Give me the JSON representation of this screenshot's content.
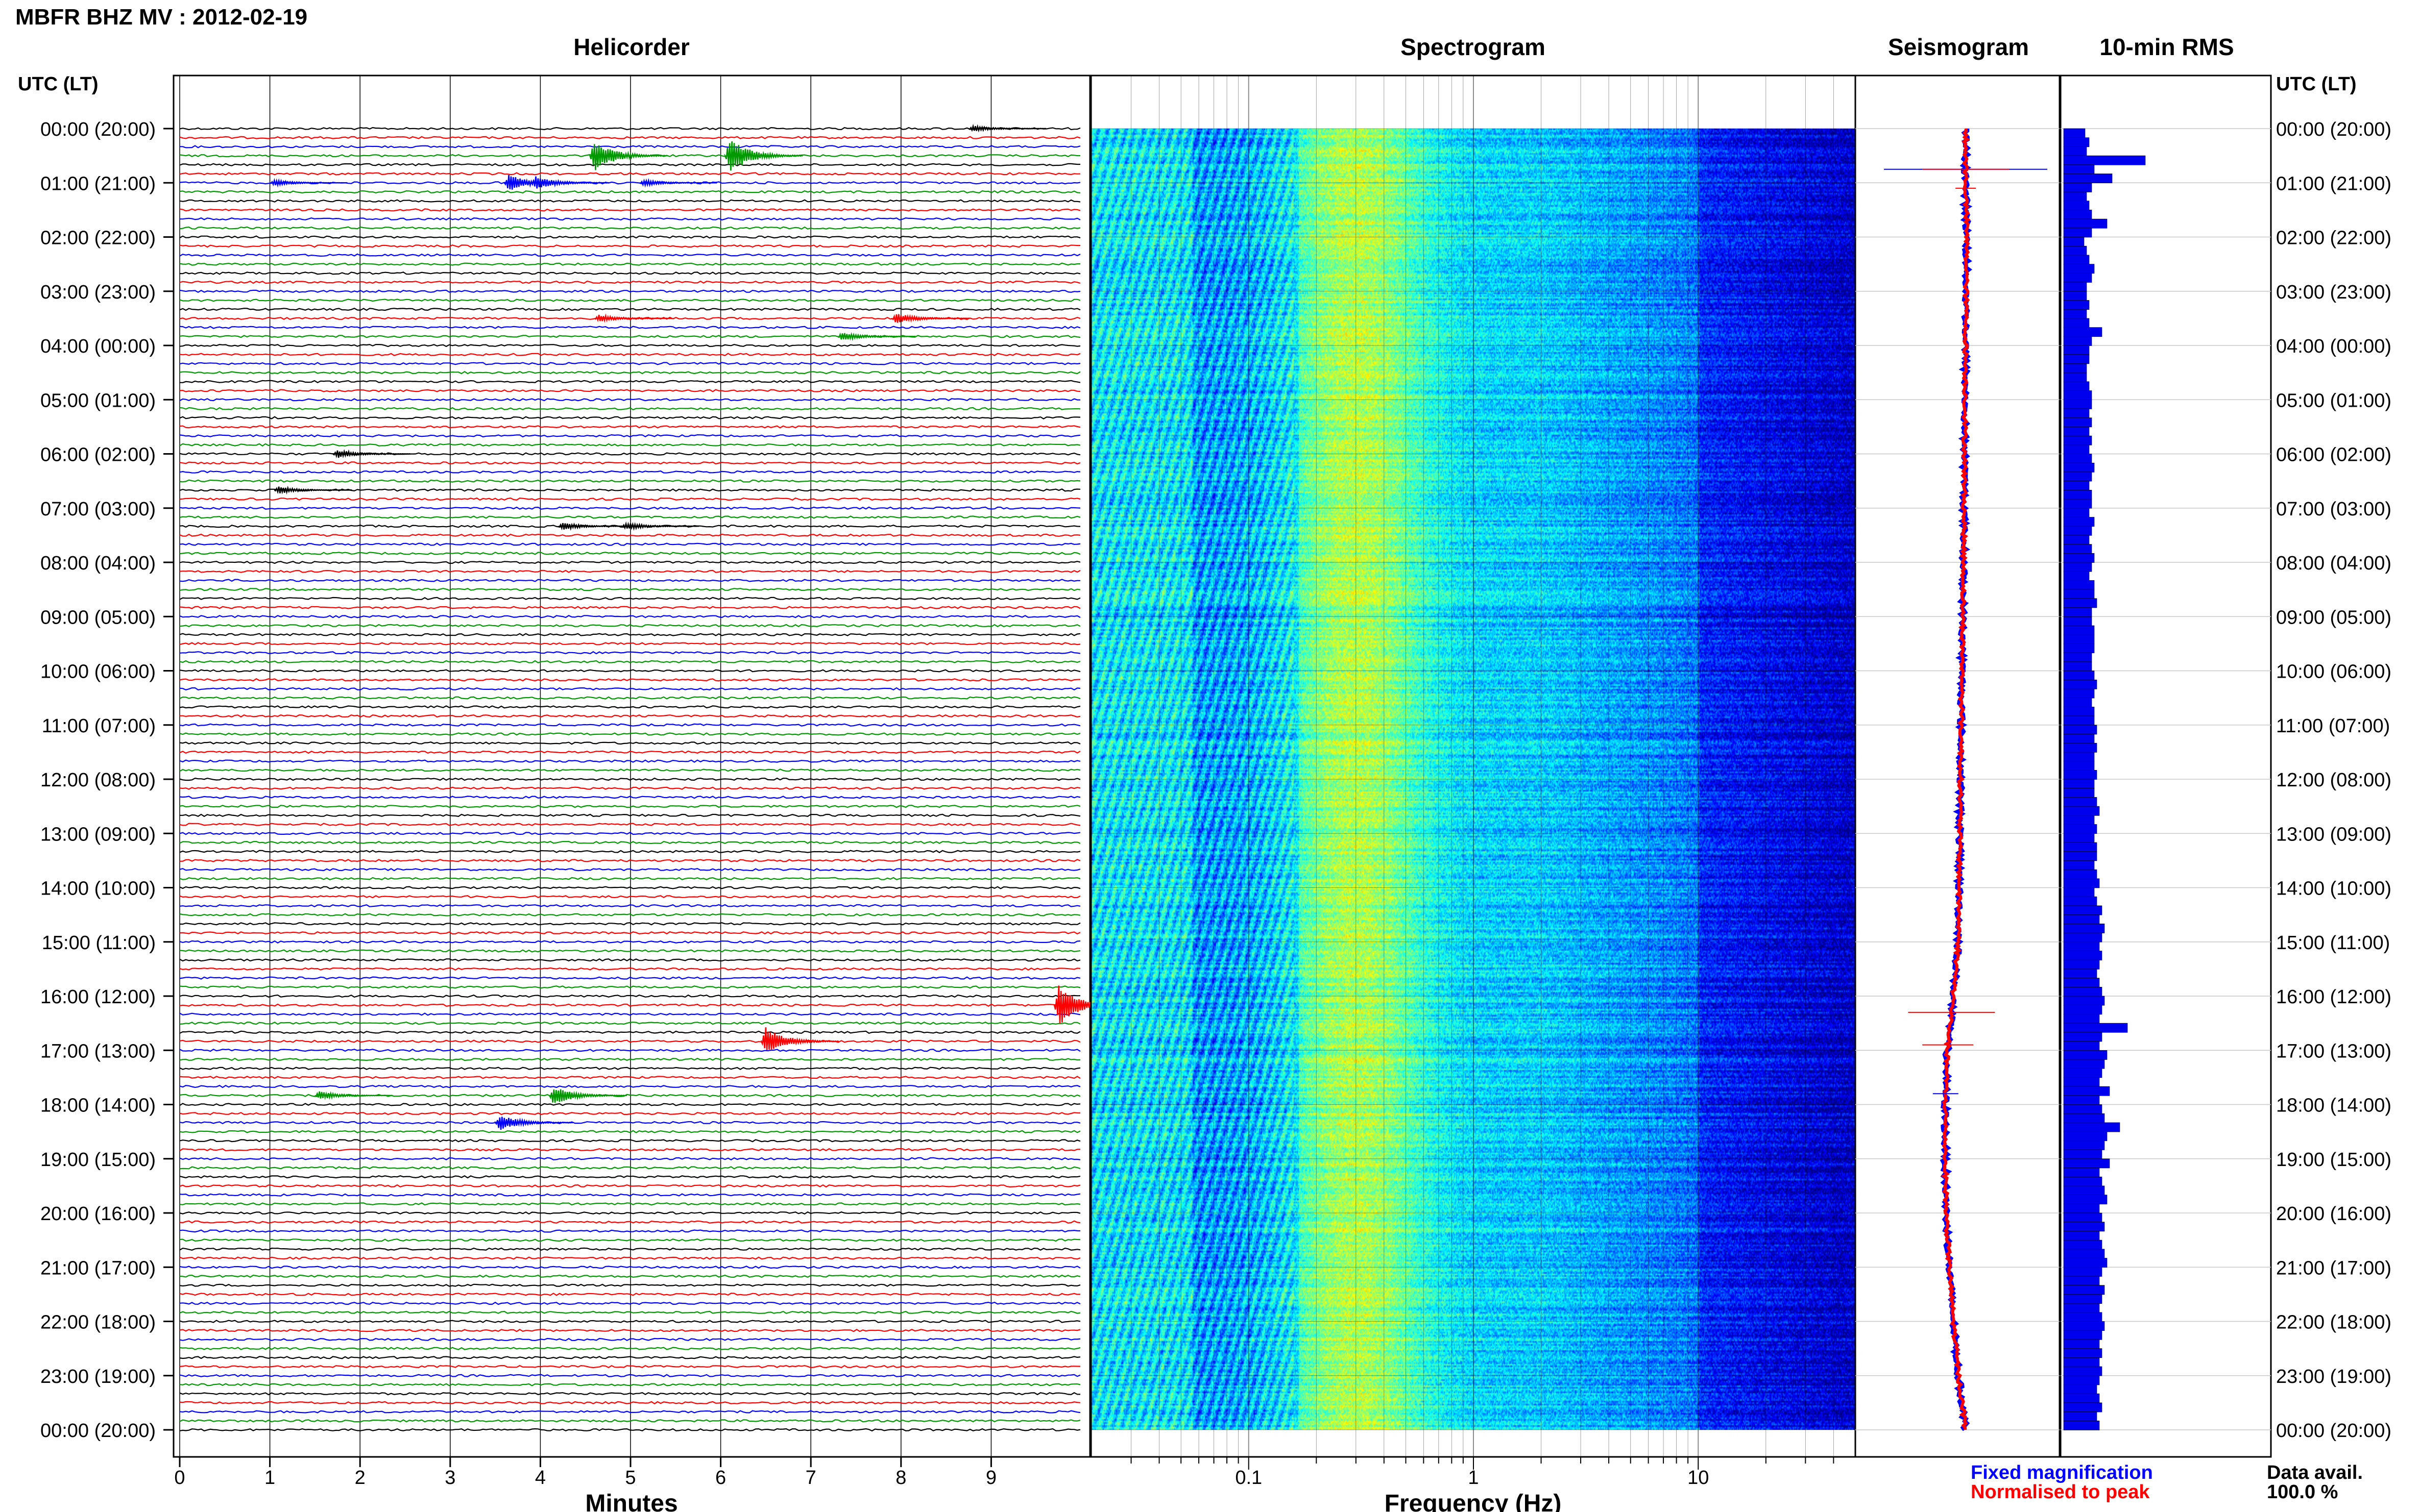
{
  "title": "MBFR BHZ MV : 2012-02-19",
  "panel_titles": {
    "helicorder": "Helicorder",
    "spectrogram": "Spectrogram",
    "seismogram": "Seismogram",
    "rms": "10-min RMS"
  },
  "axis_labels": {
    "time_left": "UTC (LT)",
    "time_right": "UTC (LT)",
    "helicorder_x": "Minutes",
    "spectrogram_x": "Frequency (Hz)"
  },
  "legend": {
    "fixed": "Fixed magnification",
    "normalised": "Normalised to peak",
    "fixed_color": "#0000ff",
    "normalised_color": "#ff0000"
  },
  "data_avail": {
    "label": "Data avail.",
    "value": "100.0 %"
  },
  "colors": {
    "trace_cycle": [
      "#000000",
      "#ff0000",
      "#0000ff",
      "#009a00"
    ],
    "rms_bar": "#0000ee"
  },
  "chart_data": [
    {
      "type": "line",
      "name": "helicorder",
      "xlabel": "Minutes",
      "xlim": [
        0,
        10
      ],
      "x_ticks": [
        "0",
        "1",
        "2",
        "3",
        "4",
        "5",
        "6",
        "7",
        "8",
        "9"
      ],
      "y_tick_labels": [
        "00:00 (20:00)",
        "01:00 (21:00)",
        "02:00 (22:00)",
        "03:00 (23:00)",
        "04:00 (00:00)",
        "05:00 (01:00)",
        "06:00 (02:00)",
        "07:00 (03:00)",
        "08:00 (04:00)",
        "09:00 (05:00)",
        "10:00 (06:00)",
        "11:00 (07:00)",
        "12:00 (08:00)",
        "13:00 (09:00)",
        "14:00 (10:00)",
        "15:00 (11:00)",
        "16:00 (12:00)",
        "17:00 (13:00)",
        "18:00 (14:00)",
        "19:00 (15:00)",
        "20:00 (16:00)",
        "21:00 (17:00)",
        "22:00 (18:00)",
        "23:00 (19:00)",
        "00:00 (20:00)"
      ],
      "traces_per_hour": 6,
      "events": [
        {
          "hour": 0.0,
          "minute": 8.75,
          "amp": 0.25
        },
        {
          "hour": 0.5,
          "minute": 4.55,
          "amp": 1.4
        },
        {
          "hour": 0.5,
          "minute": 6.05,
          "amp": 1.6
        },
        {
          "hour": 1.0,
          "minute": 3.6,
          "amp": 0.7
        },
        {
          "hour": 1.0,
          "minute": 3.9,
          "amp": 0.6
        },
        {
          "hour": 1.0,
          "minute": 1.0,
          "amp": 0.25
        },
        {
          "hour": 1.0,
          "minute": 5.1,
          "amp": 0.25
        },
        {
          "hour": 3.5,
          "minute": 4.6,
          "amp": 0.3
        },
        {
          "hour": 3.5,
          "minute": 7.9,
          "amp": 0.45
        },
        {
          "hour": 3.8,
          "minute": 7.3,
          "amp": 0.35
        },
        {
          "hour": 6.0,
          "minute": 1.7,
          "amp": 0.35
        },
        {
          "hour": 6.67,
          "minute": 1.05,
          "amp": 0.3
        },
        {
          "hour": 7.33,
          "minute": 4.2,
          "amp": 0.3
        },
        {
          "hour": 7.33,
          "minute": 4.9,
          "amp": 0.3
        },
        {
          "hour": 16.17,
          "minute": 9.7,
          "amp": 1.8
        },
        {
          "hour": 16.83,
          "minute": 6.45,
          "amp": 1.2
        },
        {
          "hour": 17.83,
          "minute": 1.5,
          "amp": 0.35
        },
        {
          "hour": 17.83,
          "minute": 4.1,
          "amp": 0.8
        },
        {
          "hour": 18.33,
          "minute": 3.5,
          "amp": 0.7
        }
      ]
    },
    {
      "type": "heatmap",
      "name": "spectrogram",
      "xlabel": "Frequency (Hz)",
      "x_scale": "log",
      "xlim": [
        0.02,
        50
      ],
      "x_ticks": [
        0.1,
        1,
        10
      ],
      "x_tick_labels": [
        "0.1",
        "1",
        "10"
      ],
      "hours": [
        0,
        24
      ],
      "colormap": "jet",
      "dominant_band_hz": [
        0.2,
        0.5
      ],
      "microseism_peak_hz": 0.3
    },
    {
      "type": "line",
      "name": "seismogram",
      "series": [
        {
          "name": "Fixed magnification",
          "color": "#0000ff"
        },
        {
          "name": "Normalised to peak",
          "color": "#ff0000"
        }
      ],
      "hour_points": [
        0,
        1,
        2,
        4,
        8,
        12,
        15,
        16,
        17,
        18,
        19,
        20,
        21,
        22,
        23,
        24
      ],
      "offset_points": [
        0,
        0,
        0.01,
        0,
        -0.02,
        -0.05,
        -0.07,
        -0.12,
        -0.18,
        -0.2,
        -0.2,
        -0.19,
        -0.16,
        -0.12,
        -0.07,
        0
      ]
    },
    {
      "type": "bar",
      "name": "10-min RMS",
      "bar_values": [
        0.42,
        0.5,
        0.45,
        1.6,
        0.6,
        0.95,
        0.55,
        0.45,
        0.5,
        0.55,
        0.85,
        0.55,
        0.4,
        0.45,
        0.5,
        0.6,
        0.55,
        0.45,
        0.45,
        0.5,
        0.45,
        0.5,
        0.75,
        0.55,
        0.5,
        0.5,
        0.45,
        0.45,
        0.5,
        0.55,
        0.55,
        0.5,
        0.55,
        0.5,
        0.55,
        0.5,
        0.55,
        0.6,
        0.55,
        0.5,
        0.55,
        0.55,
        0.5,
        0.6,
        0.55,
        0.5,
        0.55,
        0.6,
        0.55,
        0.5,
        0.6,
        0.6,
        0.65,
        0.55,
        0.55,
        0.6,
        0.6,
        0.6,
        0.55,
        0.55,
        0.6,
        0.65,
        0.6,
        0.55,
        0.6,
        0.6,
        0.65,
        0.6,
        0.65,
        0.6,
        0.6,
        0.65,
        0.6,
        0.6,
        0.65,
        0.7,
        0.6,
        0.65,
        0.6,
        0.65,
        0.65,
        0.6,
        0.65,
        0.7,
        0.6,
        0.65,
        0.75,
        0.7,
        0.8,
        0.75,
        0.7,
        0.75,
        0.7,
        0.65,
        0.7,
        0.75,
        0.8,
        0.75,
        0.7,
        1.25,
        0.75,
        0.7,
        0.85,
        0.8,
        0.75,
        0.7,
        0.9,
        0.7,
        0.75,
        0.8,
        1.1,
        0.85,
        0.8,
        0.75,
        0.9,
        0.7,
        0.75,
        0.8,
        0.85,
        0.7,
        0.75,
        0.8,
        0.7,
        0.75,
        0.8,
        0.85,
        0.75,
        0.7,
        0.8,
        0.75,
        0.7,
        0.75,
        0.8,
        0.75,
        0.7,
        0.75,
        0.7,
        0.75,
        0.7,
        0.65,
        0.7,
        0.75,
        0.65,
        0.7
      ],
      "bars_per_hour": 6
    }
  ]
}
